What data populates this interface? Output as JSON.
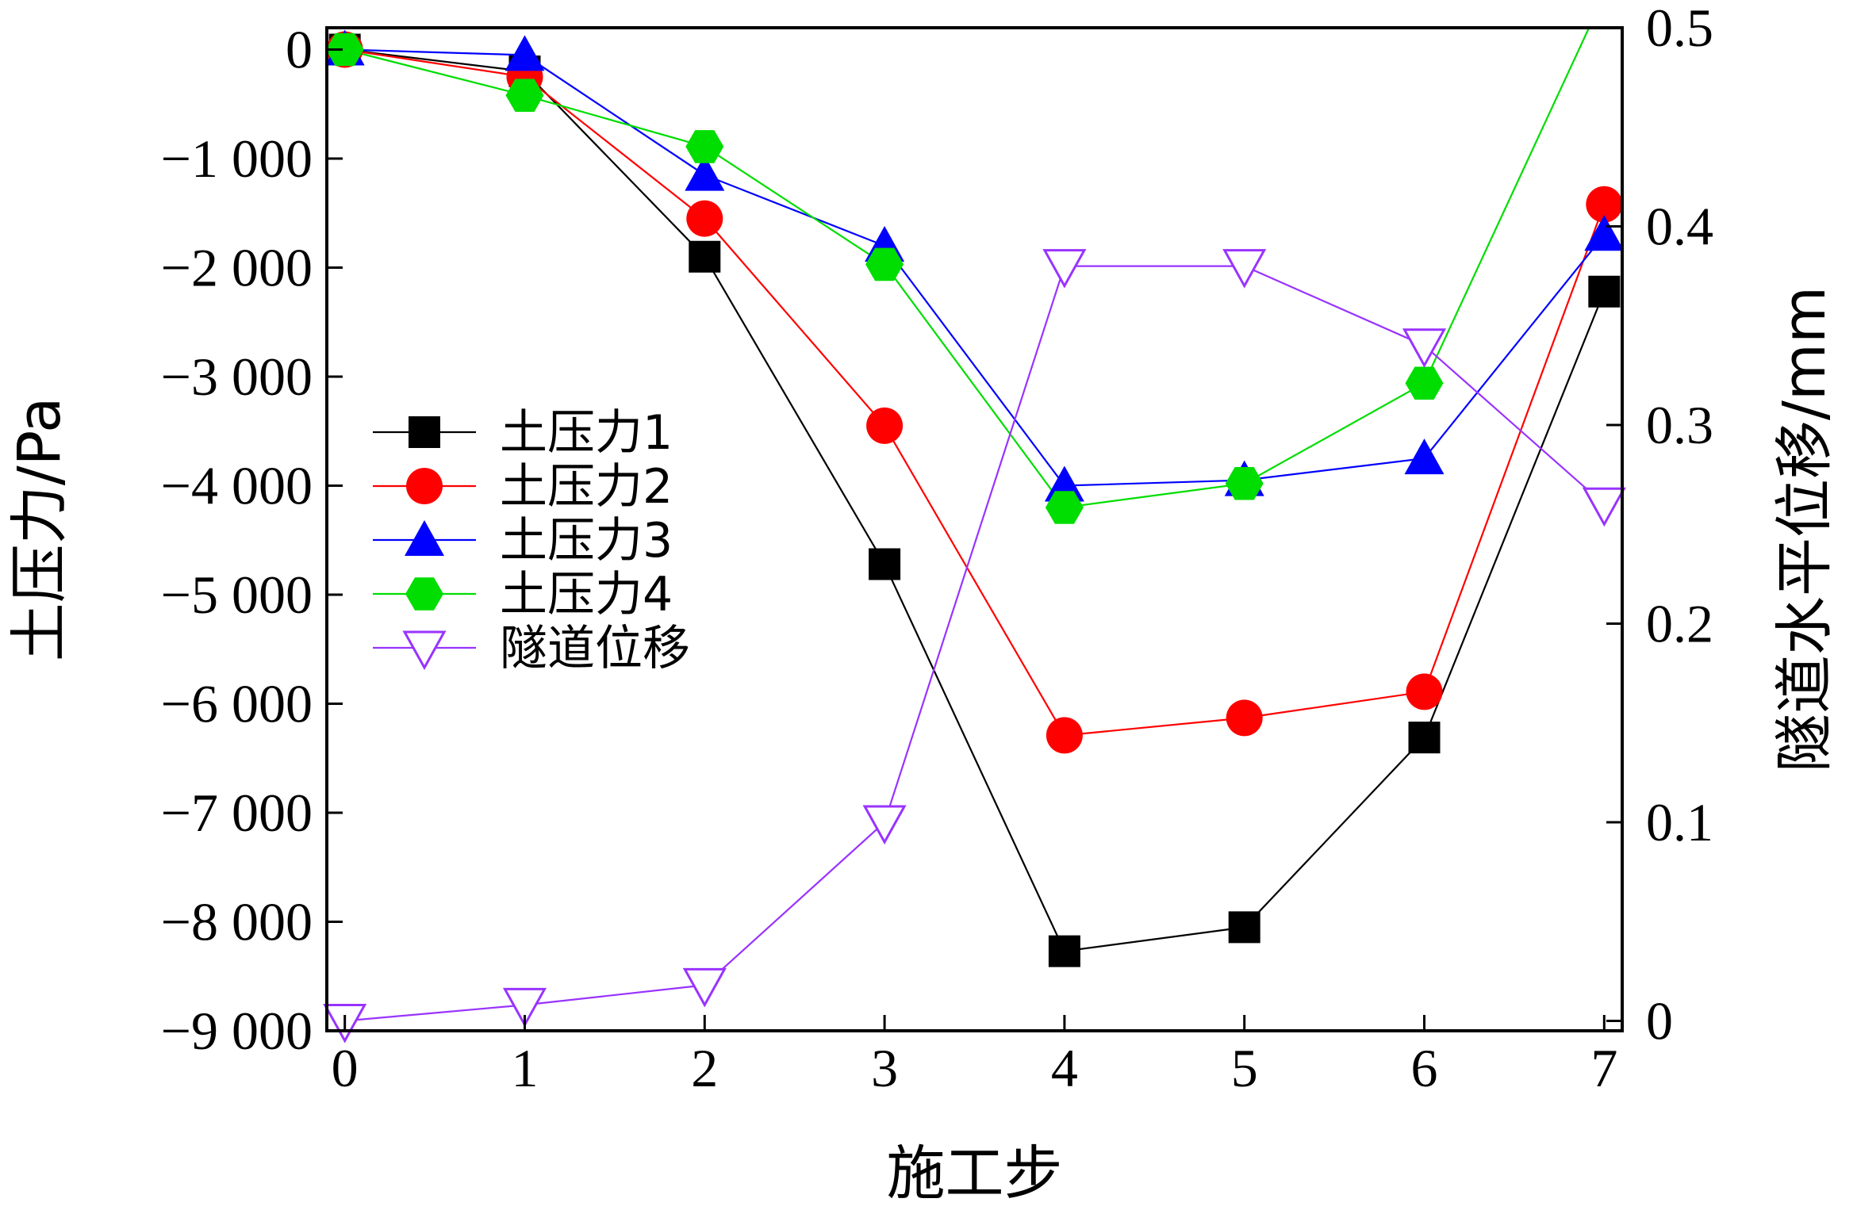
{
  "chart_data": {
    "type": "line",
    "xlabel": "施工步",
    "ylabel_left": "土压力/Pa",
    "ylabel_right": "隧道水平位移/mm",
    "x": [
      0,
      1,
      2,
      3,
      4,
      5,
      6,
      7
    ],
    "x_tick_labels": [
      "0",
      "1",
      "2",
      "3",
      "4",
      "5",
      "6",
      "7"
    ],
    "xlim": [
      -0.1,
      7.1
    ],
    "ylim_left": [
      -9000,
      200
    ],
    "ylim_right": [
      -0.005,
      0.5
    ],
    "y_left_ticks": [
      0,
      -1000,
      -2000,
      -3000,
      -4000,
      -5000,
      -6000,
      -7000,
      -8000,
      -9000
    ],
    "y_left_tick_labels": [
      "0",
      "−1 000",
      "−2 000",
      "−3 000",
      "−4 000",
      "−5 000",
      "−6 000",
      "−7 000",
      "−8 000",
      "−9 000"
    ],
    "y_right_ticks": [
      0,
      0.1,
      0.2,
      0.3,
      0.4,
      0.5
    ],
    "y_right_tick_labels": [
      "0",
      "0.1",
      "0.2",
      "0.3",
      "0.4",
      "0.5"
    ],
    "grid": false,
    "legend_position": "middle-left",
    "series": [
      {
        "name": "土压力1",
        "axis": "left",
        "marker": "square",
        "color": "#000000",
        "values": [
          0,
          -200,
          -1900,
          -4720,
          -8270,
          -8050,
          -6310,
          -2220
        ]
      },
      {
        "name": "土压力2",
        "axis": "left",
        "marker": "circle",
        "color": "#ff0000",
        "values": [
          0,
          -250,
          -1550,
          -3450,
          -6290,
          -6130,
          -5890,
          -1420
        ]
      },
      {
        "name": "土压力3",
        "axis": "left",
        "marker": "triangle-up",
        "color": "#0000ff",
        "values": [
          0,
          -50,
          -1150,
          -1800,
          -4000,
          -3950,
          -3750,
          -1700
        ]
      },
      {
        "name": "土压力4",
        "axis": "left",
        "marker": "hexagon",
        "color": "#00dd00",
        "values": [
          0,
          -420,
          -890,
          -1970,
          -4200,
          -3980,
          -3060,
          500
        ]
      },
      {
        "name": "隧道位移",
        "axis": "right",
        "marker": "triangle-down-open",
        "color": "#9933ff",
        "values": [
          0,
          0.008,
          0.018,
          0.1,
          0.38,
          0.38,
          0.34,
          0.26
        ]
      }
    ]
  }
}
